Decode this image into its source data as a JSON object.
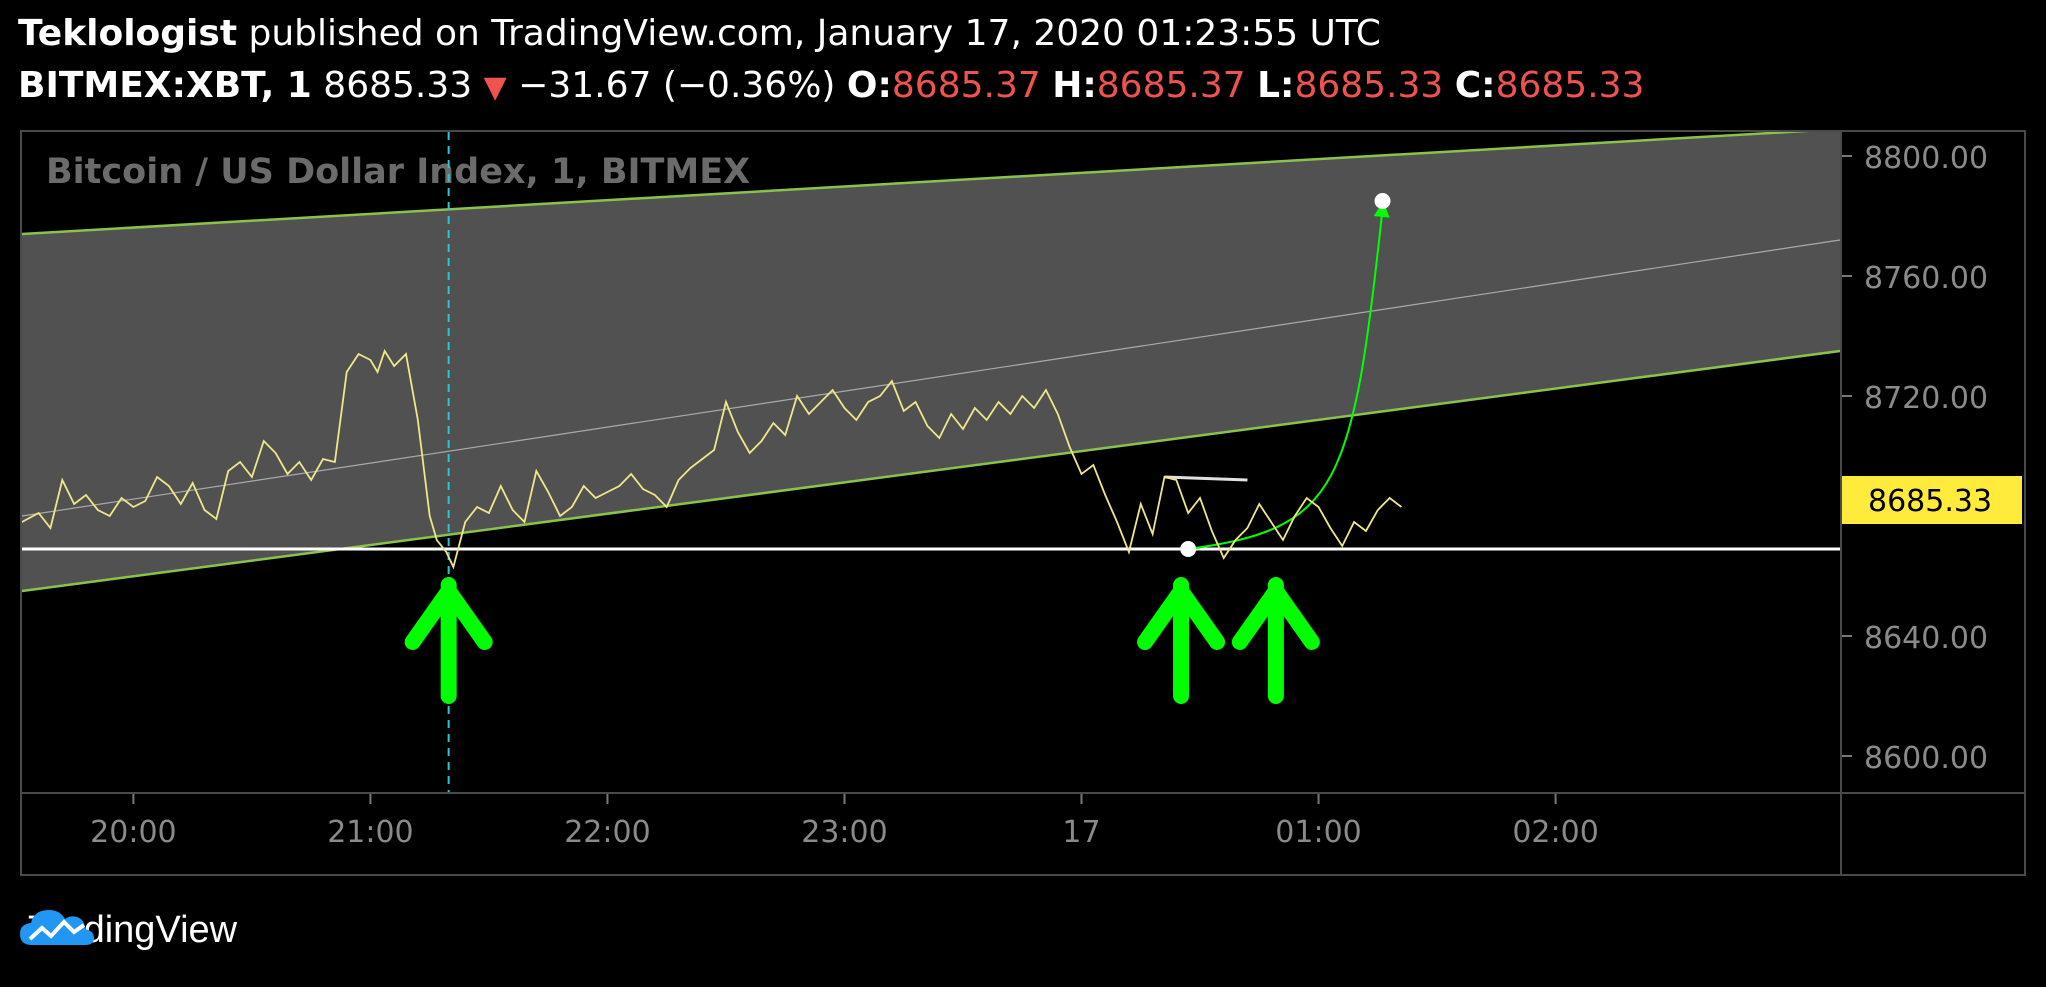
{
  "header": {
    "author": "Teklologist",
    "published_text": "published on TradingView.com, January 17, 2020 01:23:55 UTC",
    "symbol": "BITMEX:XBT, 1",
    "last_price": "8685.33",
    "change_arrow": "▼",
    "change": "−31.67 (−0.36%)",
    "open_label": "O:",
    "open": "8685.37",
    "high_label": "H:",
    "high": "8685.37",
    "low_label": "L:",
    "low": "8685.33",
    "close_label": "C:",
    "close": "8685.33"
  },
  "footer": {
    "brand": "TradingView"
  },
  "colors": {
    "price_line": "#f0e68c",
    "channel_fill": "#555555",
    "channel_border": "#8bc34a",
    "up_arrow": "#00ff00",
    "price_label_bg": "#ffeb3b",
    "down_red": "#ef5350"
  },
  "chart_data": {
    "type": "line",
    "title": "Bitcoin / US Dollar Index, 1, BITMEX",
    "y_ticks": [
      "8800.00",
      "8760.00",
      "8720.00",
      "8640.00",
      "8600.00"
    ],
    "y_tick_values": [
      8800,
      8760,
      8720,
      8640,
      8600
    ],
    "x_ticks": [
      "20:00",
      "21:00",
      "22:00",
      "23:00",
      "17",
      "01:00",
      "02:00"
    ],
    "x_tick_values": [
      20,
      21,
      22,
      23,
      24,
      25,
      26
    ],
    "xlim": [
      19.53,
      27.2
    ],
    "ylim": [
      8588,
      8808
    ],
    "current_price_label": "8685.33",
    "current_price": 8685.33,
    "support_level": 8669,
    "series": [
      {
        "x": [
          19.53,
          19.6,
          19.65,
          19.7,
          19.75,
          19.8,
          19.85,
          19.9,
          19.95,
          20.0,
          20.05,
          20.1,
          20.15,
          20.2,
          20.25,
          20.3,
          20.35,
          20.4,
          20.45,
          20.5,
          20.55,
          20.6,
          20.65,
          20.7,
          20.75,
          20.8,
          20.85,
          20.9,
          20.95,
          21.0,
          21.03,
          21.06,
          21.1,
          21.15,
          21.2,
          21.25,
          21.28,
          21.32,
          21.35,
          21.4,
          21.45,
          21.5,
          21.55,
          21.6,
          21.65,
          21.7,
          21.75,
          21.8,
          21.85,
          21.9,
          21.95,
          22.0,
          22.05,
          22.1,
          22.15,
          22.2,
          22.25,
          22.3,
          22.35,
          22.4,
          22.45,
          22.5,
          22.55,
          22.6,
          22.65,
          22.7,
          22.75,
          22.8,
          22.85,
          22.9,
          22.95,
          23.0,
          23.05,
          23.1,
          23.15,
          23.2,
          23.25,
          23.3,
          23.35,
          23.4,
          23.45,
          23.5,
          23.55,
          23.6,
          23.65,
          23.7,
          23.75,
          23.8,
          23.85,
          23.9,
          23.95,
          24.0,
          24.05,
          24.1,
          24.15,
          24.2,
          24.25,
          24.3,
          24.35,
          24.4,
          24.45,
          24.5,
          24.55,
          24.6,
          24.65,
          24.7,
          24.75,
          24.8,
          24.85,
          24.9,
          24.95,
          25.0,
          25.05,
          25.1,
          25.15,
          25.2,
          25.25,
          25.3,
          25.35
        ],
        "y": [
          8678,
          8681,
          8676,
          8692,
          8684,
          8687,
          8682,
          8680,
          8686,
          8683,
          8685,
          8693,
          8690,
          8684,
          8691,
          8682,
          8679,
          8695,
          8698,
          8693,
          8705,
          8701,
          8694,
          8698,
          8692,
          8699,
          8698,
          8728,
          8734,
          8732,
          8728,
          8735,
          8730,
          8734,
          8712,
          8680,
          8672,
          8668,
          8663,
          8678,
          8683,
          8681,
          8690,
          8682,
          8678,
          8695,
          8688,
          8680,
          8683,
          8690,
          8686,
          8688,
          8690,
          8694,
          8689,
          8687,
          8683,
          8692,
          8696,
          8699,
          8702,
          8718,
          8708,
          8701,
          8705,
          8711,
          8707,
          8720,
          8714,
          8718,
          8722,
          8716,
          8712,
          8718,
          8720,
          8725,
          8715,
          8718,
          8710,
          8706,
          8714,
          8709,
          8716,
          8712,
          8718,
          8714,
          8720,
          8716,
          8722,
          8714,
          8703,
          8694,
          8697,
          8687,
          8678,
          8668,
          8684,
          8674,
          8693,
          8692,
          8681,
          8686,
          8675,
          8666,
          8672,
          8676,
          8684,
          8678,
          8672,
          8680,
          8686,
          8683,
          8676,
          8670,
          8678,
          8675,
          8682,
          8686,
          8683
        ]
      }
    ],
    "channel": {
      "upper": [
        [
          19.53,
          8774
        ],
        [
          27.2,
          8809
        ]
      ],
      "lower": [
        [
          19.53,
          8655
        ],
        [
          27.2,
          8735
        ]
      ],
      "middle": [
        [
          19.53,
          8680
        ],
        [
          27.2,
          8772
        ]
      ]
    },
    "vertical_marker_x": 21.33,
    "resistance_segment": [
      [
        24.35,
        8693
      ],
      [
        24.7,
        8692
      ]
    ],
    "projection": {
      "start": [
        24.45,
        8669
      ],
      "end": [
        25.27,
        8785
      ]
    },
    "up_arrows_x": [
      21.33,
      24.42,
      24.82
    ]
  }
}
